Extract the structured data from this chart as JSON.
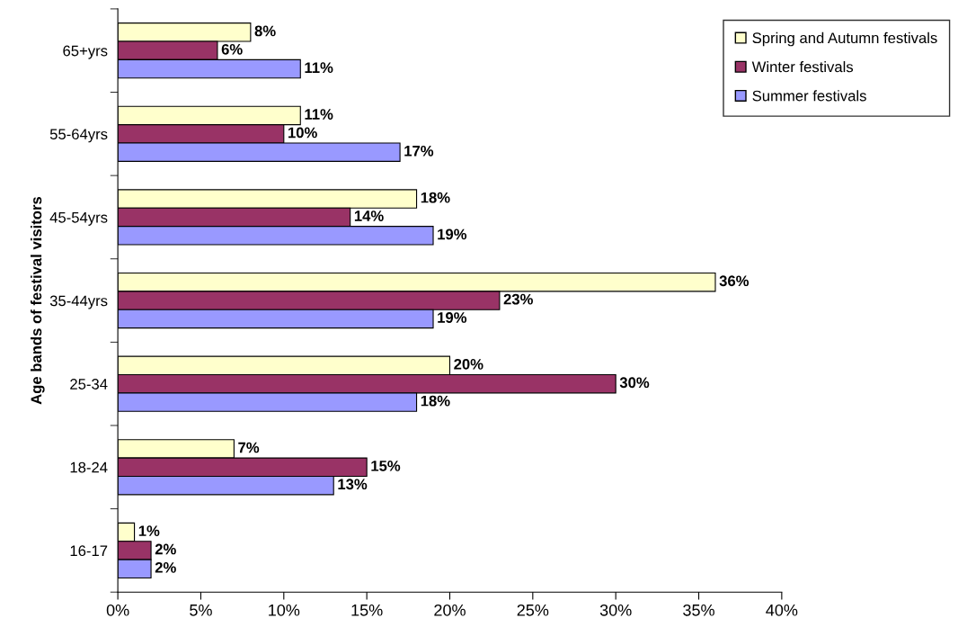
{
  "chart_data": {
    "type": "bar",
    "orientation": "horizontal",
    "ylabel": "Age bands of festival visitors",
    "categories": [
      "65+yrs",
      "55-64yrs",
      "45-54yrs",
      "35-44yrs",
      "25-34",
      "18-24",
      "16-17"
    ],
    "series": [
      {
        "name": "Spring and Autumn festivals",
        "color": "#ffffcc",
        "values": [
          8,
          11,
          18,
          36,
          20,
          7,
          1
        ],
        "value_labels": [
          "8%",
          "11%",
          "18%",
          "36%",
          "20%",
          "7%",
          "1%"
        ]
      },
      {
        "name": "Winter festivals",
        "color": "#993366",
        "values": [
          6,
          10,
          14,
          23,
          30,
          15,
          2
        ],
        "value_labels": [
          "6%",
          "10%",
          "14%",
          "23%",
          "30%",
          "15%",
          "2%"
        ]
      },
      {
        "name": "Summer festivals",
        "color": "#9999ff",
        "values": [
          11,
          17,
          19,
          19,
          18,
          13,
          2
        ],
        "value_labels": [
          "11%",
          "17%",
          "19%",
          "19%",
          "18%",
          "13%",
          "2%"
        ]
      }
    ],
    "xlim": [
      0,
      40
    ],
    "xticks": [
      {
        "value": 0,
        "label": "0%"
      },
      {
        "value": 5,
        "label": "5%"
      },
      {
        "value": 10,
        "label": "10%"
      },
      {
        "value": 15,
        "label": "15%"
      },
      {
        "value": 20,
        "label": "20%"
      },
      {
        "value": 25,
        "label": "25%"
      },
      {
        "value": 30,
        "label": "30%"
      },
      {
        "value": 35,
        "label": "35%"
      },
      {
        "value": 40,
        "label": "40%"
      }
    ],
    "grid": false,
    "legend": "top right"
  }
}
